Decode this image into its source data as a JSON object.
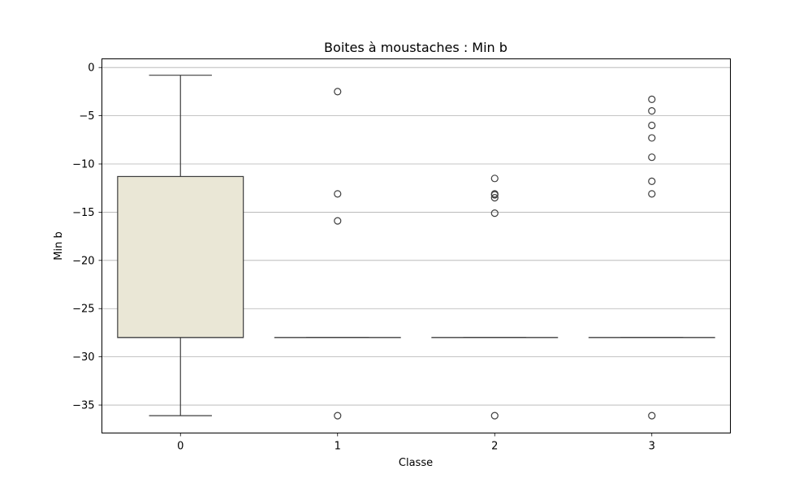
{
  "chart_data": {
    "type": "box",
    "title": "Boites à moustaches : Min b",
    "xlabel": "Classe",
    "ylabel": "Min b",
    "categories": [
      "0",
      "1",
      "2",
      "3"
    ],
    "ylim": [
      -37.9,
      0.9
    ],
    "yticks": [
      0,
      -5,
      -10,
      -15,
      -20,
      -25,
      -30,
      -35
    ],
    "ytick_labels": [
      "0",
      "−5",
      "−10",
      "−15",
      "−20",
      "−25",
      "−30",
      "−35"
    ],
    "grid": "y",
    "box_fill_color": "#eae7d6",
    "line_color": "#3d3d3d",
    "boxes": [
      {
        "category": "0",
        "whisker_low": -36.1,
        "q1": -28.0,
        "median": -28.0,
        "q3": -11.3,
        "whisker_high": -0.8,
        "outliers": []
      },
      {
        "category": "1",
        "whisker_low": -28.0,
        "q1": -28.0,
        "median": -28.0,
        "q3": -28.0,
        "whisker_high": -28.0,
        "outliers": [
          -2.5,
          -13.1,
          -15.9,
          -36.1
        ]
      },
      {
        "category": "2",
        "whisker_low": -28.0,
        "q1": -28.0,
        "median": -28.0,
        "q3": -28.0,
        "whisker_high": -28.0,
        "outliers": [
          -11.5,
          -13.1,
          -13.2,
          -13.5,
          -15.1,
          -36.1
        ]
      },
      {
        "category": "3",
        "whisker_low": -28.0,
        "q1": -28.0,
        "median": -28.0,
        "q3": -28.0,
        "whisker_high": -28.0,
        "outliers": [
          -3.3,
          -4.5,
          -6.0,
          -7.3,
          -9.3,
          -11.8,
          -13.1,
          -36.1
        ]
      }
    ]
  }
}
